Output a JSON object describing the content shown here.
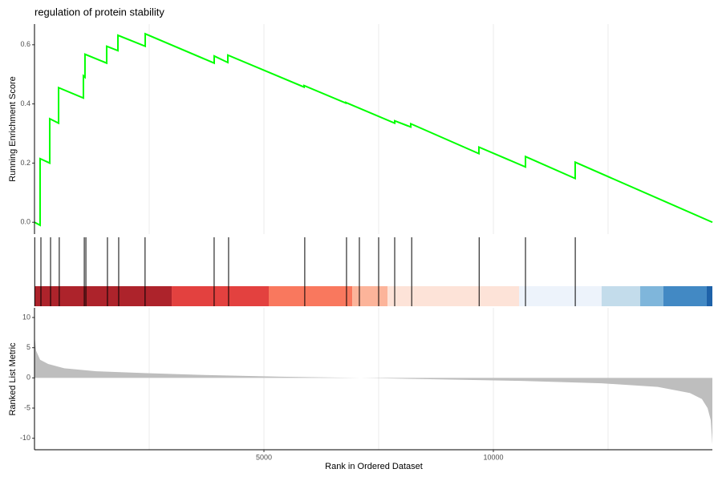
{
  "chart_data": {
    "type": "gsea",
    "title": "regulation of protein stability",
    "xlabel": "Rank in Ordered Dataset",
    "xlim": [
      0,
      14773
    ],
    "xticks": [
      5000,
      10000
    ],
    "xminor": [
      2500,
      7500,
      12500
    ],
    "grid": true,
    "running": {
      "ylabel": "Running Enrichment Score",
      "ylim": [
        -0.04,
        0.67
      ],
      "yticks": [
        {
          "value": 0,
          "label": "0.0"
        },
        0.2,
        0.4,
        0.6
      ],
      "color": "#00ff00",
      "x": [
        0,
        122,
        122,
        332,
        332,
        525,
        525,
        1066,
        1066,
        1100,
        1100,
        1573,
        1573,
        1818,
        1818,
        2413,
        2413,
        3916,
        3916,
        4213,
        4213,
        5874,
        5874,
        6783,
        6783,
        7850,
        7850,
        8200,
        8200,
        9685,
        9685,
        10700,
        10700,
        11783,
        11783,
        14773
      ],
      "values": [
        0,
        -0.01,
        0.215,
        0.2,
        0.35,
        0.335,
        0.455,
        0.42,
        0.495,
        0.49,
        0.568,
        0.538,
        0.595,
        0.58,
        0.632,
        0.595,
        0.637,
        0.538,
        0.562,
        0.54,
        0.565,
        0.457,
        0.462,
        0.403,
        0.405,
        0.335,
        0.343,
        0.322,
        0.333,
        0.232,
        0.254,
        0.187,
        0.222,
        0.148,
        0.203,
        0
      ]
    },
    "hits": {
      "color": "#000000",
      "x": [
        5,
        140,
        350,
        540,
        1085,
        1120,
        1590,
        1835,
        2410,
        3915,
        4230,
        5890,
        6800,
        7080,
        7500,
        7850,
        8220,
        9690,
        10700,
        11785
      ]
    },
    "bands": {
      "edges": [
        0,
        2990,
        5105,
        6925,
        7695,
        10560,
        12360,
        13200,
        13705,
        14650,
        14773
      ],
      "colors": [
        "#ad232b",
        "#e3413f",
        "#f9785e",
        "#fcb49a",
        "#fde3d8",
        "#edf3fb",
        "#c3dceb",
        "#7fb6db",
        "#4289c4",
        "#1e62a9"
      ]
    },
    "metric": {
      "ylabel": "Ranked List Metric",
      "ylim": [
        -11.9,
        11.6
      ],
      "yticks": [
        -10,
        -5,
        0,
        5,
        10
      ],
      "color": "#bebebe",
      "x": [
        0,
        35,
        122,
        297,
        647,
        1346,
        2395,
        3619,
        5367,
        7115,
        8864,
        10612,
        12360,
        13584,
        14283,
        14545,
        14668,
        14738,
        14773
      ],
      "values": [
        7,
        4.5,
        3,
        2.3,
        1.6,
        1.1,
        0.8,
        0.5,
        0.2,
        0,
        -0.25,
        -0.5,
        -0.9,
        -1.5,
        -2.5,
        -3.5,
        -5,
        -7,
        -11
      ]
    }
  }
}
